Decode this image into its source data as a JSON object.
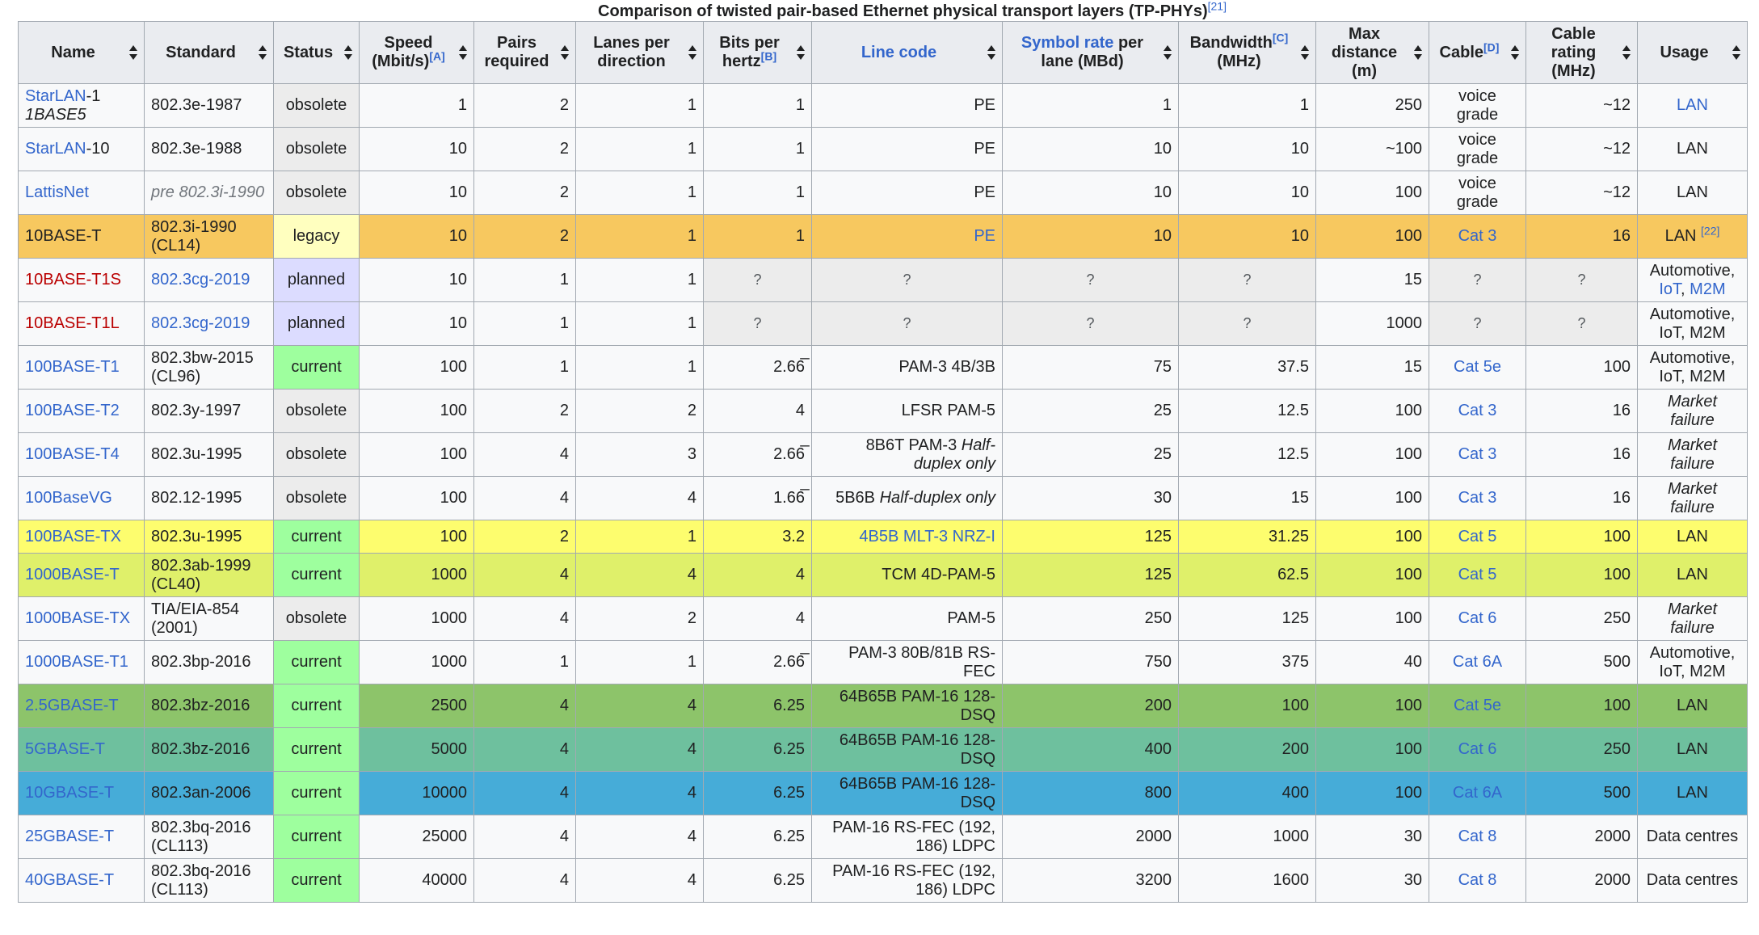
{
  "caption": {
    "text": "Comparison of twisted pair-based Ethernet physical transport layers (TP-PHYs)",
    "ref": "[21]"
  },
  "status_colors": {
    "obsolete": "#ececec",
    "legacy": "#ffffbf",
    "planned": "#dcdcff",
    "current": "#9eff9e"
  },
  "headers": [
    {
      "key": "name",
      "parts": [
        {
          "t": "Name"
        }
      ]
    },
    {
      "key": "standard",
      "parts": [
        {
          "t": "Standard"
        }
      ]
    },
    {
      "key": "status",
      "parts": [
        {
          "t": "Status"
        }
      ]
    },
    {
      "key": "speed",
      "parts": [
        {
          "t": "Speed (Mbit/s)"
        },
        {
          "sup": "[A]"
        }
      ]
    },
    {
      "key": "pairs",
      "parts": [
        {
          "t": "Pairs required"
        }
      ]
    },
    {
      "key": "lanes",
      "parts": [
        {
          "t": "Lanes per direction"
        }
      ]
    },
    {
      "key": "bits",
      "parts": [
        {
          "t": "Bits per hertz"
        },
        {
          "sup": "[B]"
        }
      ]
    },
    {
      "key": "linecode",
      "parts": [
        {
          "link": "Line code"
        }
      ]
    },
    {
      "key": "symrate",
      "parts": [
        {
          "link": "Symbol rate"
        },
        {
          "t": " per lane (MBd)"
        }
      ]
    },
    {
      "key": "bandwidth",
      "parts": [
        {
          "t": "Bandwidth"
        },
        {
          "sup": "[C]"
        },
        {
          "t": " (MHz)"
        }
      ]
    },
    {
      "key": "maxdist",
      "parts": [
        {
          "t": "Max distance (m)"
        }
      ]
    },
    {
      "key": "cable",
      "parts": [
        {
          "t": "Cable"
        },
        {
          "sup": "[D]"
        }
      ]
    },
    {
      "key": "rating",
      "parts": [
        {
          "t": "Cable rating (MHz)"
        }
      ]
    },
    {
      "key": "usage",
      "parts": [
        {
          "t": "Usage"
        }
      ]
    }
  ],
  "rows": [
    {
      "bg": null,
      "cells": {
        "name": [
          {
            "link": "StarLAN"
          },
          {
            "t": "-1"
          },
          {
            "br": 1
          },
          {
            "i": "1BASE5"
          }
        ],
        "standard": [
          {
            "t": "802.3e-1987"
          }
        ],
        "status": "obsolete",
        "speed": "1",
        "pairs": "2",
        "lanes": "1",
        "bits": "1",
        "linecode": [
          {
            "t": "PE"
          }
        ],
        "symrate": "1",
        "bandwidth": "1",
        "maxdist": "250",
        "cable": [
          {
            "t": "voice grade"
          }
        ],
        "rating": "~12",
        "usage": [
          {
            "link": "LAN"
          }
        ]
      }
    },
    {
      "bg": null,
      "cells": {
        "name": [
          {
            "link": "StarLAN"
          },
          {
            "t": "-10"
          }
        ],
        "standard": [
          {
            "t": "802.3e-1988"
          }
        ],
        "status": "obsolete",
        "speed": "10",
        "pairs": "2",
        "lanes": "1",
        "bits": "1",
        "linecode": [
          {
            "t": "PE"
          }
        ],
        "symrate": "10",
        "bandwidth": "10",
        "maxdist": "~100",
        "cable": [
          {
            "t": "voice grade"
          }
        ],
        "rating": "~12",
        "usage": [
          {
            "t": "LAN"
          }
        ]
      }
    },
    {
      "bg": null,
      "cells": {
        "name": [
          {
            "link": "LattisNet"
          }
        ],
        "standard": [
          {
            "gray": "pre 802.3i-1990"
          }
        ],
        "status": "obsolete",
        "speed": "10",
        "pairs": "2",
        "lanes": "1",
        "bits": "1",
        "linecode": [
          {
            "t": "PE"
          }
        ],
        "symrate": "10",
        "bandwidth": "10",
        "maxdist": "100",
        "cable": [
          {
            "t": "voice grade"
          }
        ],
        "rating": "~12",
        "usage": [
          {
            "t": "LAN"
          }
        ]
      }
    },
    {
      "bg": "#f7c85f",
      "cells": {
        "name": [
          {
            "t": "10BASE-T"
          }
        ],
        "standard": [
          {
            "t": "802.3i-1990 (CL14)"
          }
        ],
        "status": "legacy",
        "speed": "10",
        "pairs": "2",
        "lanes": "1",
        "bits": "1",
        "linecode": [
          {
            "link": "PE"
          }
        ],
        "symrate": "10",
        "bandwidth": "10",
        "maxdist": "100",
        "cable": [
          {
            "link": "Cat 3"
          }
        ],
        "rating": "16",
        "usage": [
          {
            "t": "LAN "
          },
          {
            "sup": "[22]"
          }
        ]
      }
    },
    {
      "bg": null,
      "cells": {
        "name": [
          {
            "red": "10BASE-T1S"
          }
        ],
        "standard": [
          {
            "link": "802.3cg-2019"
          }
        ],
        "status": "planned",
        "speed": "10",
        "pairs": "1",
        "lanes": "1",
        "bits": "?",
        "linecode": "?",
        "symrate": "?",
        "bandwidth": "?",
        "maxdist": "15",
        "cable": "?",
        "rating": "?",
        "usage": [
          {
            "t": "Automotive, "
          },
          {
            "link": "IoT"
          },
          {
            "t": ", "
          },
          {
            "link": "M2M"
          }
        ]
      }
    },
    {
      "bg": null,
      "cells": {
        "name": [
          {
            "red": "10BASE-T1L"
          }
        ],
        "standard": [
          {
            "link": "802.3cg-2019"
          }
        ],
        "status": "planned",
        "speed": "10",
        "pairs": "1",
        "lanes": "1",
        "bits": "?",
        "linecode": "?",
        "symrate": "?",
        "bandwidth": "?",
        "maxdist": "1000",
        "cable": "?",
        "rating": "?",
        "usage": [
          {
            "t": "Automotive, IoT, M2M"
          }
        ]
      }
    },
    {
      "bg": null,
      "cells": {
        "name": [
          {
            "link": "100BASE-T1"
          }
        ],
        "standard": [
          {
            "t": "802.3bw-2015 (CL96)"
          }
        ],
        "status": "current",
        "speed": "100",
        "pairs": "1",
        "lanes": "1",
        "bits": "2.66̅",
        "linecode": [
          {
            "t": "PAM-3 4B/3B"
          }
        ],
        "symrate": "75",
        "bandwidth": "37.5",
        "maxdist": "15",
        "cable": [
          {
            "link": "Cat 5e"
          }
        ],
        "rating": "100",
        "usage": [
          {
            "t": "Automotive, IoT, M2M"
          }
        ]
      }
    },
    {
      "bg": null,
      "cells": {
        "name": [
          {
            "link": "100BASE-T2"
          }
        ],
        "standard": [
          {
            "t": "802.3y-1997"
          }
        ],
        "status": "obsolete",
        "speed": "100",
        "pairs": "2",
        "lanes": "2",
        "bits": "4",
        "linecode": [
          {
            "t": "LFSR PAM-5"
          }
        ],
        "symrate": "25",
        "bandwidth": "12.5",
        "maxdist": "100",
        "cable": [
          {
            "link": "Cat 3"
          }
        ],
        "rating": "16",
        "usage": [
          {
            "i": "Market failure"
          }
        ]
      }
    },
    {
      "bg": null,
      "cells": {
        "name": [
          {
            "link": "100BASE-T4"
          }
        ],
        "standard": [
          {
            "t": "802.3u-1995"
          }
        ],
        "status": "obsolete",
        "speed": "100",
        "pairs": "4",
        "lanes": "3",
        "bits": "2.66̅",
        "linecode": [
          {
            "t": "8B6T PAM-3 "
          },
          {
            "i": "Half-duplex only"
          }
        ],
        "symrate": "25",
        "bandwidth": "12.5",
        "maxdist": "100",
        "cable": [
          {
            "link": "Cat 3"
          }
        ],
        "rating": "16",
        "usage": [
          {
            "i": "Market failure"
          }
        ]
      }
    },
    {
      "bg": null,
      "cells": {
        "name": [
          {
            "link": "100BaseVG"
          }
        ],
        "standard": [
          {
            "t": "802.12-1995"
          }
        ],
        "status": "obsolete",
        "speed": "100",
        "pairs": "4",
        "lanes": "4",
        "bits": "1.66̅",
        "linecode": [
          {
            "t": "5B6B "
          },
          {
            "i": "Half-duplex only"
          }
        ],
        "symrate": "30",
        "bandwidth": "15",
        "maxdist": "100",
        "cable": [
          {
            "link": "Cat 3"
          }
        ],
        "rating": "16",
        "usage": [
          {
            "i": "Market failure"
          }
        ]
      }
    },
    {
      "bg": "#fdfd6e",
      "short": true,
      "cells": {
        "name": [
          {
            "link": "100BASE-TX"
          }
        ],
        "standard": [
          {
            "t": "802.3u-1995"
          }
        ],
        "status": "current",
        "speed": "100",
        "pairs": "2",
        "lanes": "1",
        "bits": "3.2",
        "linecode": [
          {
            "link": "4B5B"
          },
          {
            "t": " "
          },
          {
            "link": "MLT-3"
          },
          {
            "t": " "
          },
          {
            "link": "NRZ-I"
          }
        ],
        "symrate": "125",
        "bandwidth": "31.25",
        "maxdist": "100",
        "cable": [
          {
            "link": "Cat 5"
          }
        ],
        "rating": "100",
        "usage": [
          {
            "t": "LAN"
          }
        ]
      }
    },
    {
      "bg": "#dff06a",
      "cells": {
        "name": [
          {
            "link": "1000BASE-T"
          }
        ],
        "standard": [
          {
            "t": "802.3ab-1999 (CL40)"
          }
        ],
        "status": "current",
        "speed": "1000",
        "pairs": "4",
        "lanes": "4",
        "bits": "4",
        "linecode": [
          {
            "t": "TCM 4D-PAM-5"
          }
        ],
        "symrate": "125",
        "bandwidth": "62.5",
        "maxdist": "100",
        "cable": [
          {
            "link": "Cat 5"
          }
        ],
        "rating": "100",
        "usage": [
          {
            "t": "LAN"
          }
        ]
      }
    },
    {
      "bg": null,
      "cells": {
        "name": [
          {
            "link": "1000BASE-TX"
          }
        ],
        "standard": [
          {
            "t": "TIA/EIA-854 (2001)"
          }
        ],
        "status": "obsolete",
        "speed": "1000",
        "pairs": "4",
        "lanes": "2",
        "bits": "4",
        "linecode": [
          {
            "t": "PAM-5"
          }
        ],
        "symrate": "250",
        "bandwidth": "125",
        "maxdist": "100",
        "cable": [
          {
            "link": "Cat 6"
          }
        ],
        "rating": "250",
        "usage": [
          {
            "i": "Market failure"
          }
        ]
      }
    },
    {
      "bg": null,
      "cells": {
        "name": [
          {
            "link": "1000BASE-T1"
          }
        ],
        "standard": [
          {
            "t": "802.3bp-2016"
          }
        ],
        "status": "current",
        "speed": "1000",
        "pairs": "1",
        "lanes": "1",
        "bits": "2.66̅",
        "linecode": [
          {
            "t": "PAM-3 80B/81B RS-FEC"
          }
        ],
        "symrate": "750",
        "bandwidth": "375",
        "maxdist": "40",
        "cable": [
          {
            "link": "Cat 6A"
          }
        ],
        "rating": "500",
        "usage": [
          {
            "t": "Automotive, IoT, M2M"
          }
        ]
      }
    },
    {
      "bg": "#8dc46a",
      "cells": {
        "name": [
          {
            "link": "2.5GBASE-T"
          }
        ],
        "standard": [
          {
            "t": "802.3bz-2016"
          }
        ],
        "status": "current",
        "speed": "2500",
        "pairs": "4",
        "lanes": "4",
        "bits": "6.25",
        "linecode": [
          {
            "t": "64B65B PAM-16 128-DSQ"
          }
        ],
        "symrate": "200",
        "bandwidth": "100",
        "maxdist": "100",
        "cable": [
          {
            "link": "Cat 5e"
          }
        ],
        "rating": "100",
        "usage": [
          {
            "t": "LAN"
          }
        ]
      }
    },
    {
      "bg": "#6ec09e",
      "cells": {
        "name": [
          {
            "link": "5GBASE-T"
          }
        ],
        "standard": [
          {
            "t": "802.3bz-2016"
          }
        ],
        "status": "current",
        "speed": "5000",
        "pairs": "4",
        "lanes": "4",
        "bits": "6.25",
        "linecode": [
          {
            "t": "64B65B PAM-16 128-DSQ"
          }
        ],
        "symrate": "400",
        "bandwidth": "200",
        "maxdist": "100",
        "cable": [
          {
            "link": "Cat 6"
          }
        ],
        "rating": "250",
        "usage": [
          {
            "t": "LAN"
          }
        ]
      }
    },
    {
      "bg": "#46acd8",
      "cells": {
        "name": [
          {
            "link": "10GBASE-T"
          }
        ],
        "standard": [
          {
            "t": "802.3an-2006"
          }
        ],
        "status": "current",
        "speed": "10000",
        "pairs": "4",
        "lanes": "4",
        "bits": "6.25",
        "linecode": [
          {
            "t": "64B65B PAM-16 128-DSQ"
          }
        ],
        "symrate": "800",
        "bandwidth": "400",
        "maxdist": "100",
        "cable": [
          {
            "link": "Cat 6A"
          }
        ],
        "rating": "500",
        "usage": [
          {
            "t": "LAN"
          }
        ]
      }
    },
    {
      "bg": null,
      "cells": {
        "name": [
          {
            "link": "25GBASE-T"
          }
        ],
        "standard": [
          {
            "t": "802.3bq-2016 (CL113)"
          }
        ],
        "status": "current",
        "speed": "25000",
        "pairs": "4",
        "lanes": "4",
        "bits": "6.25",
        "linecode": [
          {
            "t": "PAM-16 RS-FEC (192, 186) LDPC"
          }
        ],
        "symrate": "2000",
        "bandwidth": "1000",
        "maxdist": "30",
        "cable": [
          {
            "link": "Cat 8"
          }
        ],
        "rating": "2000",
        "usage": [
          {
            "t": "Data centres"
          }
        ]
      }
    },
    {
      "bg": null,
      "cells": {
        "name": [
          {
            "link": "40GBASE-T"
          }
        ],
        "standard": [
          {
            "t": "802.3bq-2016 (CL113)"
          }
        ],
        "status": "current",
        "speed": "40000",
        "pairs": "4",
        "lanes": "4",
        "bits": "6.25",
        "linecode": [
          {
            "t": "PAM-16 RS-FEC (192, 186) LDPC"
          }
        ],
        "symrate": "3200",
        "bandwidth": "1600",
        "maxdist": "30",
        "cable": [
          {
            "link": "Cat 8"
          }
        ],
        "rating": "2000",
        "usage": [
          {
            "t": "Data centres"
          }
        ]
      }
    }
  ]
}
